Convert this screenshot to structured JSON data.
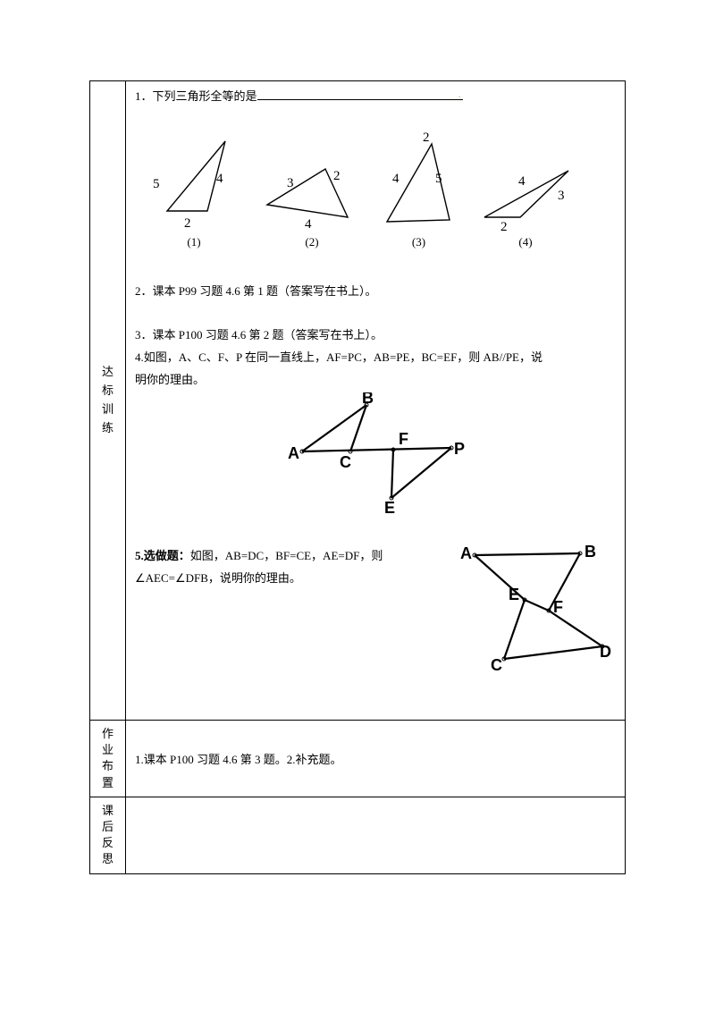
{
  "labels": {
    "training": "达标训练",
    "homework": "作业布置",
    "reflection": "课后反思"
  },
  "q1": {
    "text": "1．下列三角形全等的是"
  },
  "triangles": {
    "t1": {
      "a": "5",
      "b": "4",
      "c": "2",
      "cap": "(1)"
    },
    "t2": {
      "a": "3",
      "b": "2",
      "c": "4",
      "cap": "(2)"
    },
    "t3": {
      "a": "4",
      "b": "2",
      "c": "5",
      "cap": "(3)"
    },
    "t4": {
      "a": "4",
      "b": "3",
      "c": "2",
      "cap": "(4)"
    }
  },
  "q2": "2．课本 P99 习题 4.6 第 1 题（答案写在书上）。",
  "q3": "3．课本 P100 习题 4.6 第 2 题（答案写在书上）。",
  "q4a": " 4.如图，A、C、F、P 在同一直线上，AF=PC，AB=PE，BC=EF，则 AB//PE，说",
  "q4b": "明你的理由。",
  "fig4": {
    "A": "A",
    "B": "B",
    "C": "C",
    "E": "E",
    "F": "F",
    "P": "P"
  },
  "q5a": "5.选做题：",
  "q5b": "如图，AB=DC，BF=CE，AE=DF，则",
  "q5c": "∠AEC=∠DFB，说明你的理由。",
  "fig5": {
    "A": "A",
    "B": "B",
    "C": "C",
    "D": "D",
    "E": "E",
    "F": "F"
  },
  "homework": "1.课本 P100 习题 4.6 第 3 题。2.补充题。",
  "styles": {
    "triangle_stroke": "#000000",
    "svg_label_fontsize": 13,
    "fig_label_fontsize": 16
  }
}
